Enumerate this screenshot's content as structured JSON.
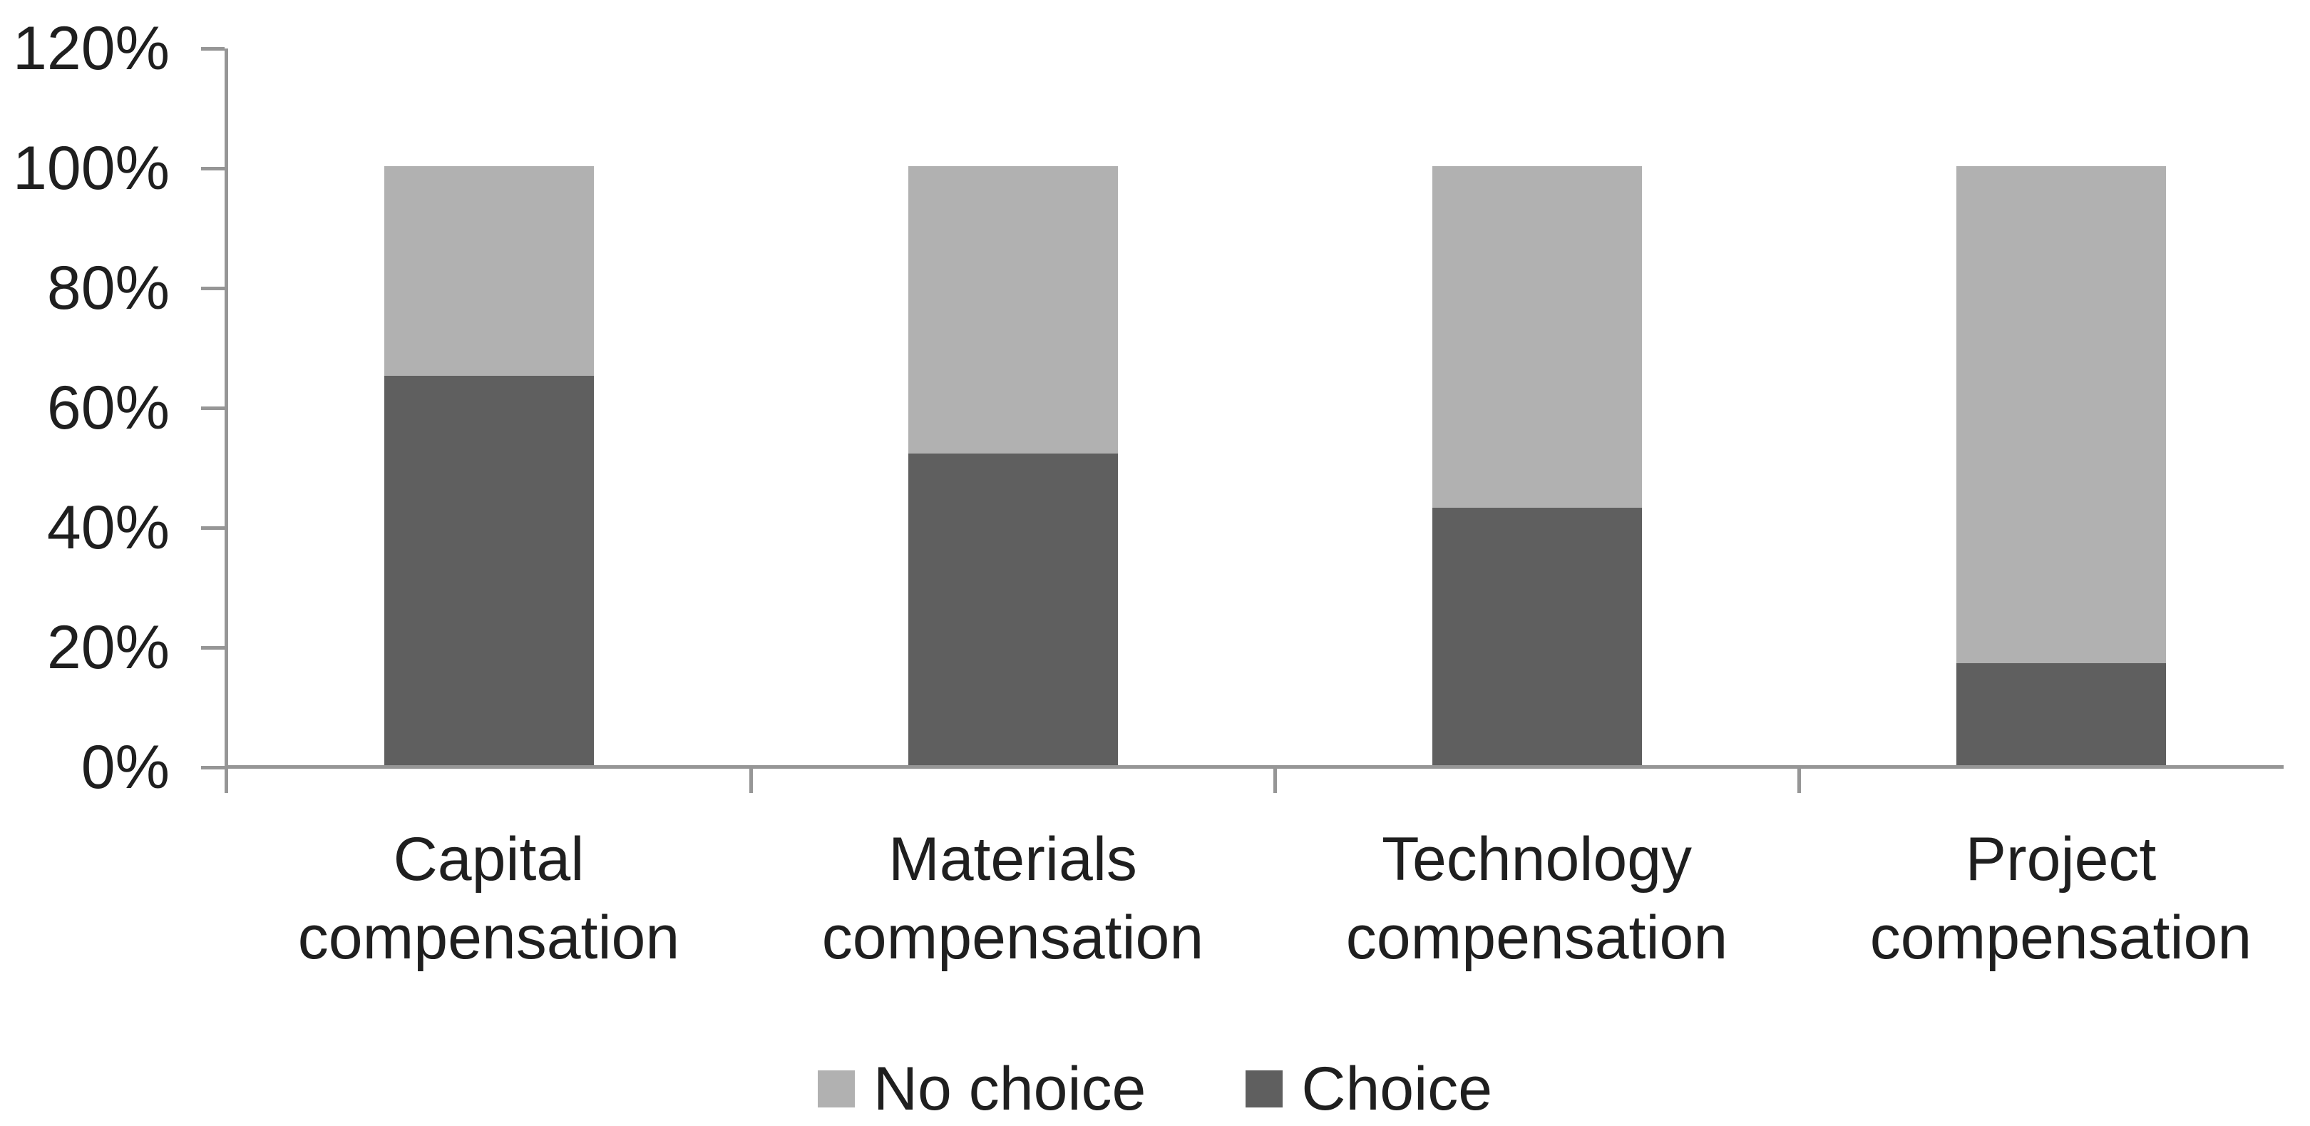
{
  "chart_data": {
    "type": "bar",
    "subtype": "stacked-percent-column",
    "title": "",
    "categories": [
      "Capital\ncompensation",
      "Materials\ncompensation",
      "Technology\ncompensation",
      "Project\ncompensation"
    ],
    "series": [
      {
        "name": "Choice",
        "color": "#5F5F5F",
        "values": [
          65,
          52,
          43,
          17
        ]
      },
      {
        "name": "No choice",
        "color": "#B1B1B1",
        "values": [
          35,
          48,
          57,
          83
        ]
      }
    ],
    "stack_order_bottom_to_top": [
      "Choice",
      "No choice"
    ],
    "bar_totals_percent": [
      100,
      100,
      100,
      100
    ],
    "y_axis": {
      "min": 0,
      "max": 120,
      "tick_step": 20,
      "tick_labels": [
        "0%",
        "20%",
        "40%",
        "60%",
        "80%",
        "100%",
        "120%"
      ],
      "unit": "%"
    },
    "x_axis": {
      "label": ""
    },
    "grid": false,
    "legend": {
      "position": "bottom-center",
      "entries": [
        {
          "label": "No choice",
          "color": "#B1B1B1"
        },
        {
          "label": "Choice",
          "color": "#5F5F5F"
        }
      ]
    },
    "colors": {
      "axis": "#969696",
      "text": "#1F1F1F",
      "background": "#FFFFFF"
    }
  }
}
